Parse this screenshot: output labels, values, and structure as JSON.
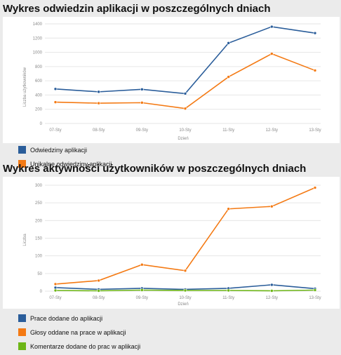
{
  "chart_data": [
    {
      "type": "line",
      "title": "Wykres odwiedzin aplikacji w poszczególnych dniach",
      "xlabel": "Dzień",
      "ylabel": "Liczba użytkowników",
      "categories": [
        "07-Sty",
        "08-Sty",
        "09-Sty",
        "10-Sty",
        "11-Sty",
        "12-Sty",
        "13-Sty"
      ],
      "ylim": [
        0,
        1400
      ],
      "yticks": [
        "0",
        "200",
        "400",
        "600",
        "800",
        "1000",
        "1200",
        "1400"
      ],
      "grid": true,
      "legend_position": "bottom-left",
      "series": [
        {
          "name": "Odwiedziny aplikacji",
          "color": "#2a5d9a",
          "values": [
            485,
            445,
            480,
            420,
            1130,
            1360,
            1270
          ]
        },
        {
          "name": "Unikalne odwiedziny aplikacji",
          "color": "#f47a14",
          "values": [
            300,
            285,
            292,
            210,
            655,
            980,
            745
          ]
        }
      ]
    },
    {
      "type": "line",
      "title": "Wykres aktywności użytkowników w poszczególnych dniach",
      "xlabel": "Dzień",
      "ylabel": "Liczba",
      "categories": [
        "07-Sty",
        "08-Sty",
        "09-Sty",
        "10-Sty",
        "11-Sty",
        "12-Sty",
        "13-Sty"
      ],
      "ylim": [
        0,
        300
      ],
      "yticks": [
        "0",
        "50",
        "100",
        "150",
        "200",
        "250",
        "300"
      ],
      "grid": true,
      "legend_position": "bottom-left",
      "series": [
        {
          "name": "Prace dodane do aplikacji",
          "color": "#2a5d9a",
          "values": [
            10,
            5,
            8,
            5,
            8,
            18,
            7
          ]
        },
        {
          "name": "Głosy oddane na prace w aplikacji",
          "color": "#f47a14",
          "values": [
            20,
            30,
            75,
            58,
            233,
            240,
            293
          ]
        },
        {
          "name": "Komentarze dodane do prac w aplikacji",
          "color": "#6db617",
          "values": [
            2,
            1,
            3,
            2,
            2,
            1,
            3
          ]
        }
      ]
    }
  ]
}
